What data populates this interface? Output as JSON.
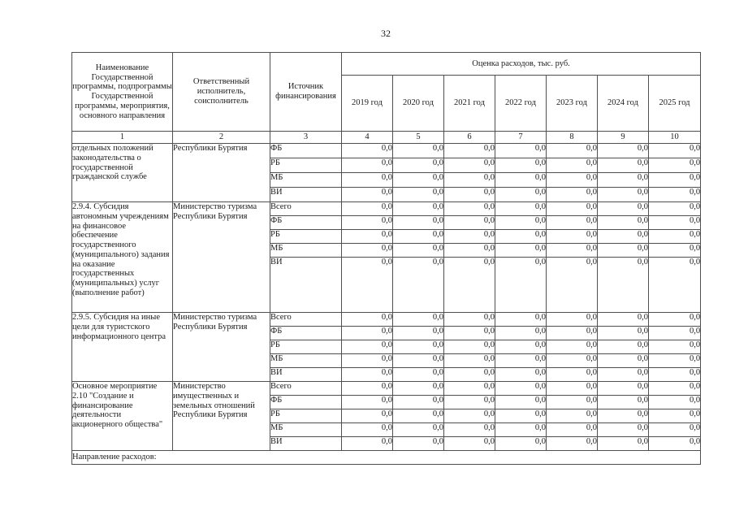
{
  "page": {
    "number": "32"
  },
  "table": {
    "headers": {
      "program_name": "Наименование Государственной программы, подпрограммы Государственной программы, мероприятия, основного направления",
      "executor": "Ответственный исполнитель, соисполнитель",
      "funding_source": "Источник финансирования",
      "expenses_title": "Оценка расходов, тыс. руб.",
      "years": [
        "2019 год",
        "2020 год",
        "2021 год",
        "2022 год",
        "2023 год",
        "2024 год",
        "2025 год"
      ],
      "column_numbers": [
        "1",
        "2",
        "3",
        "4",
        "5",
        "6",
        "7",
        "8",
        "9",
        "10"
      ]
    },
    "sections": [
      {
        "name": "отдельных положений законодательства о государственной гражданской службе",
        "executor": "Республики Бурятия",
        "rows": [
          {
            "source": "ФБ",
            "values": [
              "0,0",
              "0,0",
              "0,0",
              "0,0",
              "0,0",
              "0,0",
              "0,0"
            ]
          },
          {
            "source": "РБ",
            "values": [
              "0,0",
              "0,0",
              "0,0",
              "0,0",
              "0,0",
              "0,0",
              "0,0"
            ]
          },
          {
            "source": "МБ",
            "values": [
              "0,0",
              "0,0",
              "0,0",
              "0,0",
              "0,0",
              "0,0",
              "0,0"
            ]
          },
          {
            "source": "ВИ",
            "values": [
              "0,0",
              "0,0",
              "0,0",
              "0,0",
              "0,0",
              "0,0",
              "0,0"
            ]
          }
        ]
      },
      {
        "name": "2.9.4. Субсидия автономным учреждениям на финансовое обеспечение государственного (муниципального) задания на оказание государственных (муниципальных) услуг (выполнение работ)",
        "executor": "Министерство туризма Республики Бурятия",
        "rows": [
          {
            "source": "Всего",
            "values": [
              "0,0",
              "0,0",
              "0,0",
              "0,0",
              "0,0",
              "0,0",
              "0,0"
            ]
          },
          {
            "source": "ФБ",
            "values": [
              "0,0",
              "0,0",
              "0,0",
              "0,0",
              "0,0",
              "0,0",
              "0,0"
            ]
          },
          {
            "source": "РБ",
            "values": [
              "0,0",
              "0,0",
              "0,0",
              "0,0",
              "0,0",
              "0,0",
              "0,0"
            ]
          },
          {
            "source": "МБ",
            "values": [
              "0,0",
              "0,0",
              "0,0",
              "0,0",
              "0,0",
              "0,0",
              "0,0"
            ]
          },
          {
            "source": "ВИ",
            "values": [
              "0,0",
              "0,0",
              "0,0",
              "0,0",
              "0,0",
              "0,0",
              "0,0"
            ]
          }
        ]
      },
      {
        "name": "2.9.5. Субсидия на иные цели для туристского информационного центра",
        "executor": "Министерство туризма Республики Бурятия",
        "rows": [
          {
            "source": "Всего",
            "values": [
              "0,0",
              "0,0",
              "0,0",
              "0,0",
              "0,0",
              "0,0",
              "0,0"
            ]
          },
          {
            "source": "ФБ",
            "values": [
              "0,0",
              "0,0",
              "0,0",
              "0,0",
              "0,0",
              "0,0",
              "0,0"
            ]
          },
          {
            "source": "РБ",
            "values": [
              "0,0",
              "0,0",
              "0,0",
              "0,0",
              "0,0",
              "0,0",
              "0,0"
            ]
          },
          {
            "source": "МБ",
            "values": [
              "0,0",
              "0,0",
              "0,0",
              "0,0",
              "0,0",
              "0,0",
              "0,0"
            ]
          },
          {
            "source": "ВИ",
            "values": [
              "0,0",
              "0,0",
              "0,0",
              "0,0",
              "0,0",
              "0,0",
              "0,0"
            ]
          }
        ]
      },
      {
        "name": "Основное мероприятие 2.10 \"Создание и финансирование деятельности акционерного общества\"",
        "executor": "Министерство имущественных и земельных отношений Республики Бурятия",
        "rows": [
          {
            "source": "Всего",
            "values": [
              "0,0",
              "0,0",
              "0,0",
              "0,0",
              "0,0",
              "0,0",
              "0,0"
            ]
          },
          {
            "source": "ФБ",
            "values": [
              "0,0",
              "0,0",
              "0,0",
              "0,0",
              "0,0",
              "0,0",
              "0,0"
            ]
          },
          {
            "source": "РБ",
            "values": [
              "0,0",
              "0,0",
              "0,0",
              "0,0",
              "0,0",
              "0,0",
              "0,0"
            ]
          },
          {
            "source": "МБ",
            "values": [
              "0,0",
              "0,0",
              "0,0",
              "0,0",
              "0,0",
              "0,0",
              "0,0"
            ]
          },
          {
            "source": "ВИ",
            "values": [
              "0,0",
              "0,0",
              "0,0",
              "0,0",
              "0,0",
              "0,0",
              "0,0"
            ]
          }
        ]
      }
    ],
    "footer": "Направление расходов:"
  }
}
